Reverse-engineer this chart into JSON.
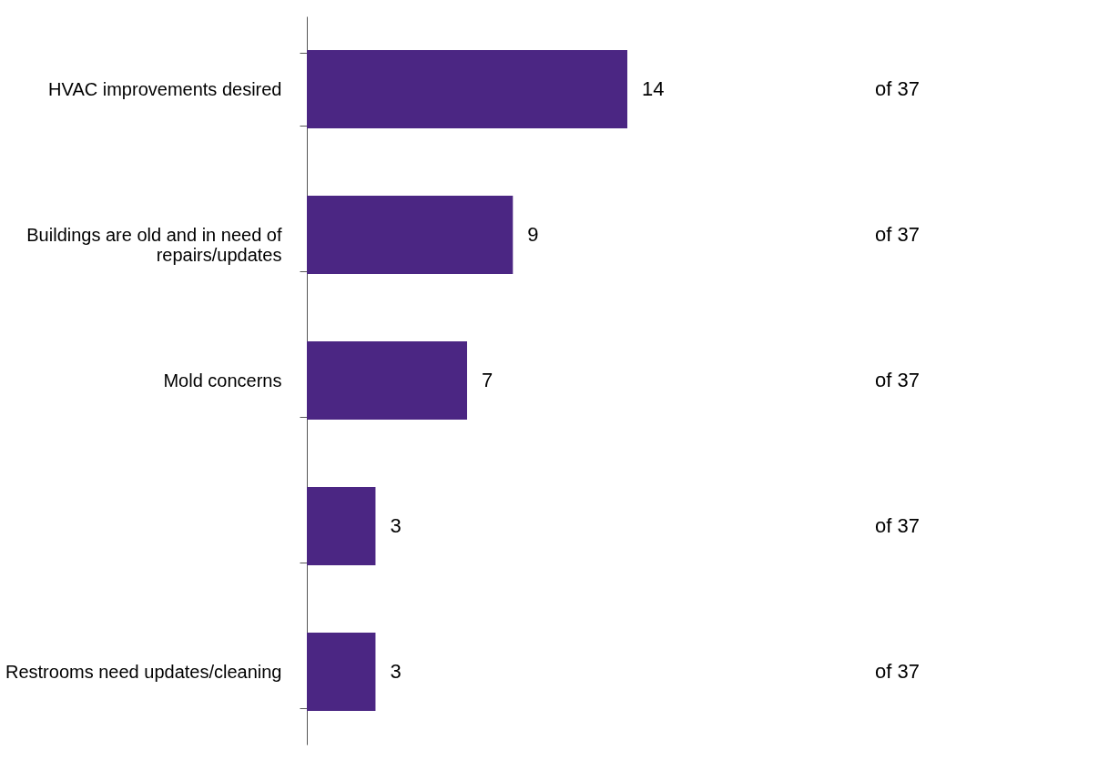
{
  "chart_data": {
    "type": "bar",
    "orientation": "horizontal",
    "categories": [
      "HVAC improvements desired",
      "Buildings are old and in need of\nrepairs/updates",
      "Mold concerns",
      null,
      "Restrooms need updates/cleaning"
    ],
    "values": [
      14,
      9,
      7,
      3,
      3
    ],
    "color": "#4b2683",
    "data_labels": true,
    "tick_labels": "y",
    "annotations": [
      "of 37",
      "of 37",
      "of 37",
      "of 37",
      "of 37"
    ]
  }
}
